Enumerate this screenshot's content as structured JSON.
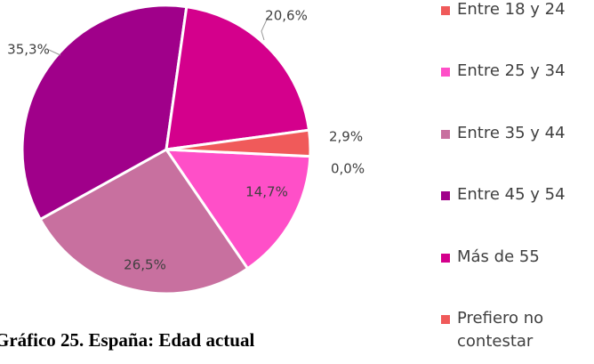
{
  "chart_data": {
    "type": "pie",
    "title": "Gráfico 25. España: Edad actual",
    "categories": [
      "Entre 18 y 24",
      "Entre 25 y 34",
      "Entre 35 y 44",
      "Entre 45 y 54",
      "Más de 55",
      "Prefiero no contestar"
    ],
    "values": [
      0.0,
      14.7,
      26.5,
      35.3,
      20.6,
      2.9
    ],
    "value_labels": [
      "0,0%",
      "14,7%",
      "26,5%",
      "35,3%",
      "20,6%",
      "2,9%"
    ],
    "colors": [
      "#f05a5a",
      "#ff4fc8",
      "#c8709f",
      "#a0008a",
      "#d4008c",
      "#f05a5a"
    ],
    "legend": "right"
  }
}
